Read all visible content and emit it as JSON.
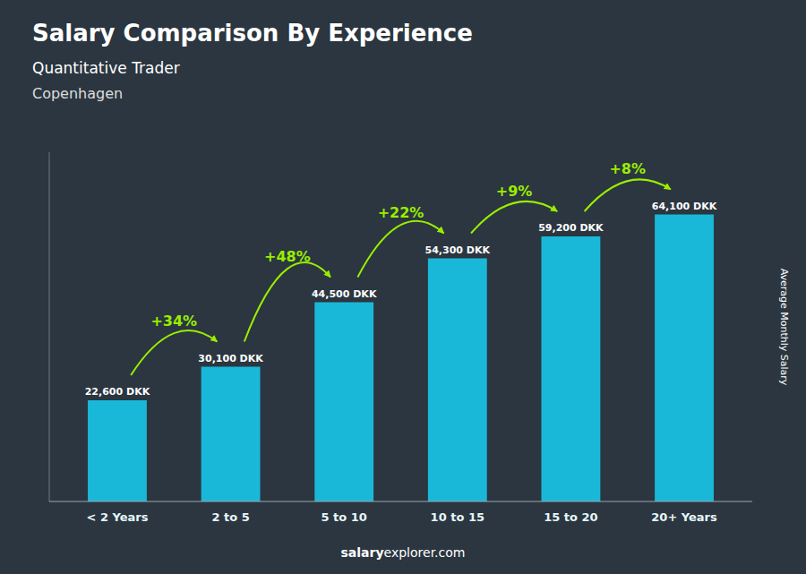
{
  "chart_data": {
    "type": "bar",
    "title": "Salary Comparison By Experience",
    "subtitle": "Quantitative Trader",
    "city": "Copenhagen",
    "ylabel": "Average Monthly Salary",
    "footer": [
      "salary",
      "explorer.com"
    ],
    "categories": [
      "< 2 Years",
      "2 to 5",
      "5 to 10",
      "10 to 15",
      "15 to 20",
      "20+ Years"
    ],
    "values": [
      22600,
      30100,
      44500,
      54300,
      59200,
      64100
    ],
    "value_labels": [
      "22,600 DKK",
      "30,100 DKK",
      "44,500 DKK",
      "54,300 DKK",
      "59,200 DKK",
      "64,100 DKK"
    ],
    "data_labels": true,
    "color": "#1ab8d8",
    "ylim": [
      0,
      78000
    ],
    "tick_labels": "x",
    "annotations": [
      {
        "text": "+34%",
        "color": "#99ee00"
      },
      {
        "text": "+48%",
        "color": "#99ee00"
      },
      {
        "text": "+22%",
        "color": "#99ee00"
      },
      {
        "text": "+9%",
        "color": "#99ee00"
      },
      {
        "text": "+8%",
        "color": "#99ee00"
      }
    ]
  }
}
